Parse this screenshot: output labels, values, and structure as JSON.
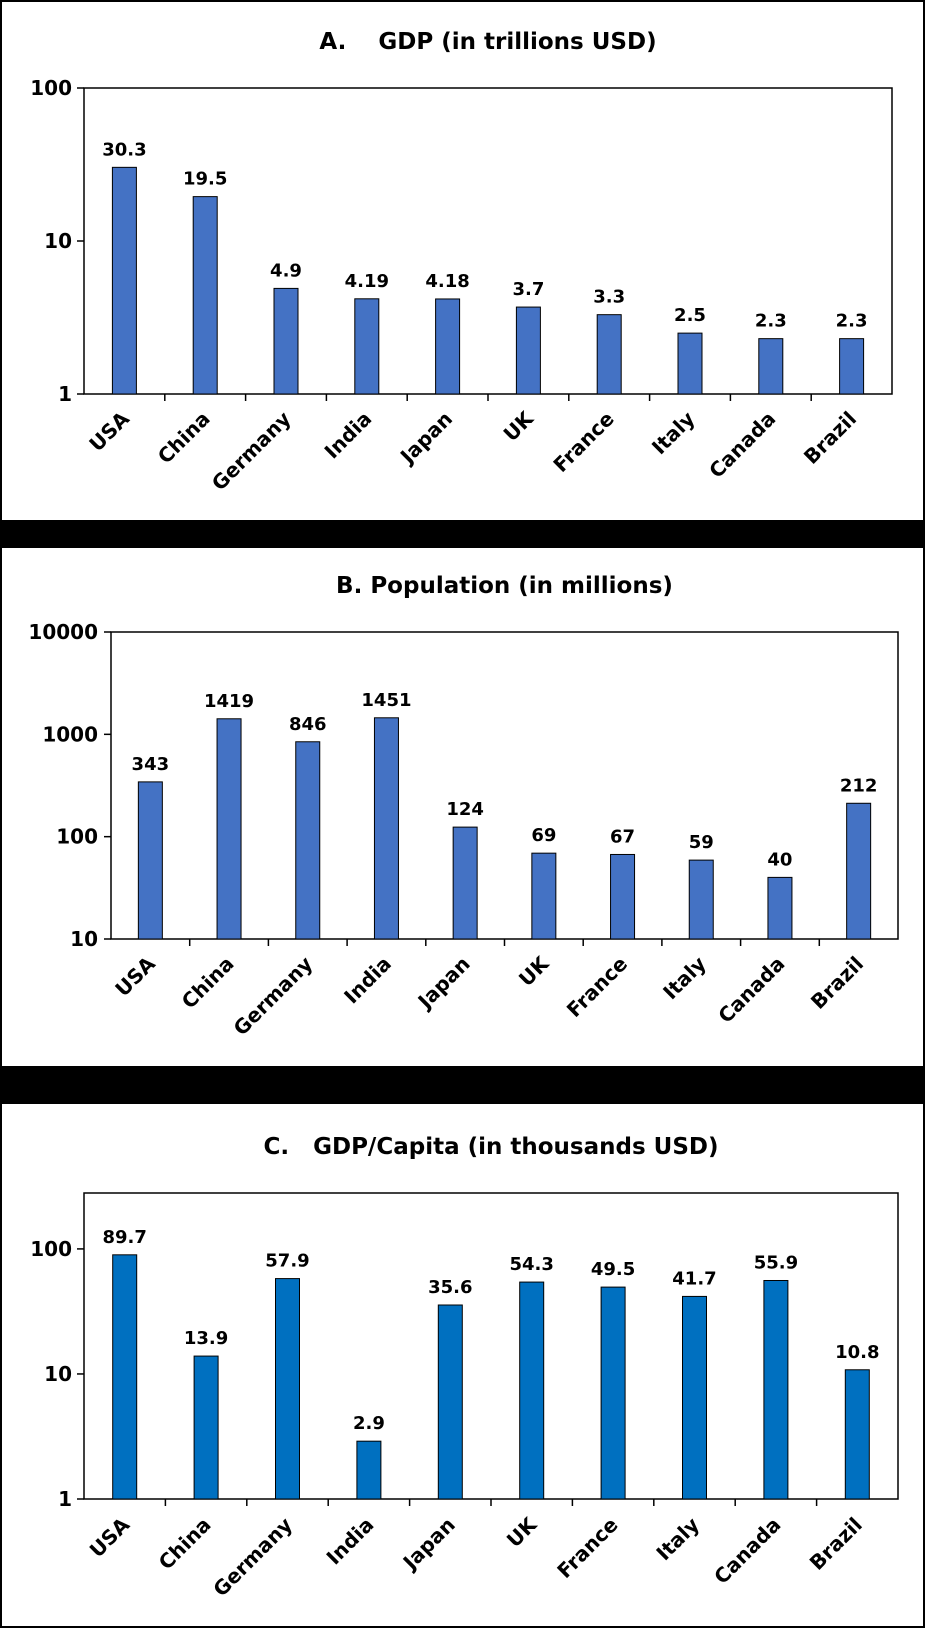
{
  "chart_data": [
    {
      "type": "bar",
      "title": "A.    GDP (in trillions USD)",
      "categories": [
        "USA",
        "China",
        "Germany",
        "India",
        "Japan",
        "UK",
        "France",
        "Italy",
        "Canada",
        "Brazil"
      ],
      "values": [
        30.3,
        19.5,
        4.9,
        4.19,
        4.18,
        3.7,
        3.3,
        2.5,
        2.3,
        2.3
      ],
      "data_labels": [
        "30.3",
        "19.5",
        "4.9",
        "4.19",
        "4.18",
        "3.7",
        "3.3",
        "2.5",
        "2.3",
        "2.3"
      ],
      "y_scale": "log",
      "ylim": [
        1,
        100
      ],
      "y_ticks": [
        1,
        10,
        100
      ],
      "y_tick_labels": [
        "1",
        "10",
        "100"
      ],
      "bar_color": "#4472C4",
      "grid": false,
      "legend": "none"
    },
    {
      "type": "bar",
      "title": "B. Population (in millions)",
      "categories": [
        "USA",
        "China",
        "Germany",
        "India",
        "Japan",
        "UK",
        "France",
        "Italy",
        "Canada",
        "Brazil"
      ],
      "values": [
        343,
        1419,
        846,
        1451,
        124,
        69,
        67,
        59,
        40,
        212
      ],
      "data_labels": [
        "343",
        "1419",
        "846",
        "1451",
        "124",
        "69",
        "67",
        "59",
        "40",
        "212"
      ],
      "y_scale": "log",
      "ylim": [
        10,
        10000
      ],
      "y_ticks": [
        10,
        100,
        1000,
        10000
      ],
      "y_tick_labels": [
        "10",
        "100",
        "1000",
        "10000"
      ],
      "bar_color": "#4472C4",
      "grid": false,
      "legend": "none"
    },
    {
      "type": "bar",
      "title": "C.   GDP/Capita (in thousands USD)",
      "categories": [
        "USA",
        "China",
        "Germany",
        "India",
        "Japan",
        "UK",
        "France",
        "Italy",
        "Canada",
        "Brazil"
      ],
      "values": [
        89.7,
        13.9,
        57.9,
        2.9,
        35.6,
        54.3,
        49.5,
        41.7,
        55.9,
        10.8
      ],
      "data_labels": [
        "89.7",
        "13.9",
        "57.9",
        "2.9",
        "35.6",
        "54.3",
        "49.5",
        "41.7",
        "55.9",
        "10.8"
      ],
      "y_scale": "log",
      "ylim": [
        1,
        280
      ],
      "y_ticks": [
        1,
        10,
        100
      ],
      "y_tick_labels": [
        "1",
        "10",
        "100"
      ],
      "bar_color": "#0070C0",
      "grid": false,
      "legend": "none"
    }
  ]
}
